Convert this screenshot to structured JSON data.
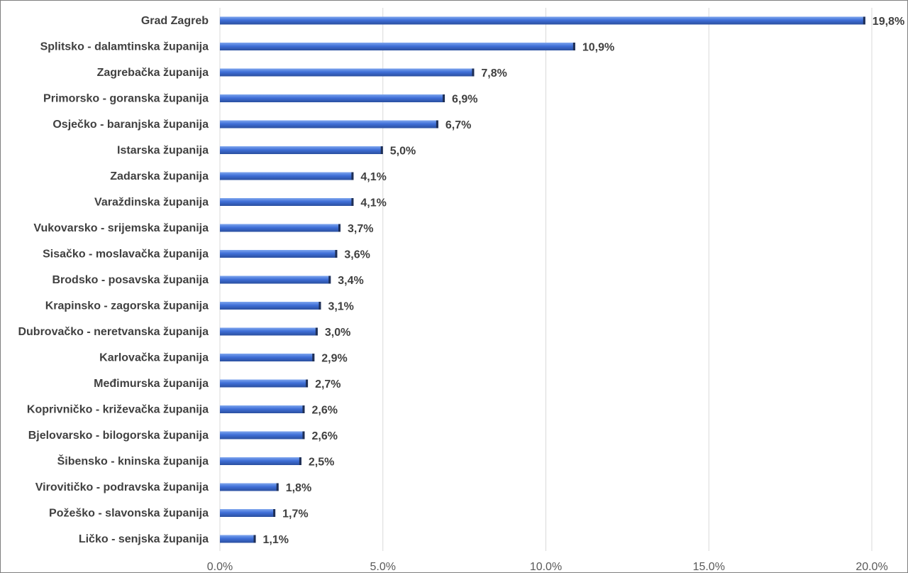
{
  "chart_data": {
    "type": "bar",
    "orientation": "horizontal",
    "title": "",
    "xlabel": "",
    "ylabel": "",
    "xlim": [
      0,
      20
    ],
    "grid": "vertical",
    "legend": "none",
    "bar_color": "#4472C4",
    "categories": [
      "Grad Zagreb",
      "Splitsko - dalamtinska županija",
      "Zagrebačka županija",
      "Primorsko - goranska županija",
      "Osječko - baranjska županija",
      "Istarska županija",
      "Zadarska županija",
      "Varaždinska županija",
      "Vukovarsko - srijemska županija",
      "Sisačko - moslavačka županija",
      "Brodsko - posavska županija",
      "Krapinsko - zagorska županija",
      "Dubrovačko - neretvanska županija",
      "Karlovačka županija",
      "Međimurska županija",
      "Koprivničko - križevačka županija",
      "Bjelovarsko - bilogorska županija",
      "Šibensko - kninska županija",
      "Virovitičko - podravska županija",
      "Požeško - slavonska županija",
      "Ličko - senjska županija"
    ],
    "values": [
      19.8,
      10.9,
      7.8,
      6.9,
      6.7,
      5.0,
      4.1,
      4.1,
      3.7,
      3.6,
      3.4,
      3.1,
      3.0,
      2.9,
      2.7,
      2.6,
      2.6,
      2.5,
      1.8,
      1.7,
      1.1
    ],
    "value_labels": [
      "19,8%",
      "10,9%",
      "7,8%",
      "6,9%",
      "6,7%",
      "5,0%",
      "4,1%",
      "4,1%",
      "3,7%",
      "3,6%",
      "3,4%",
      "3,1%",
      "3,0%",
      "2,9%",
      "2,7%",
      "2,6%",
      "2,6%",
      "2,5%",
      "1,8%",
      "1,7%",
      "1,1%"
    ],
    "x_ticks": [
      0,
      5,
      10,
      15,
      20
    ],
    "x_tick_labels": [
      "0.0%",
      "5.0%",
      "10.0%",
      "15.0%",
      "20.0%"
    ]
  }
}
